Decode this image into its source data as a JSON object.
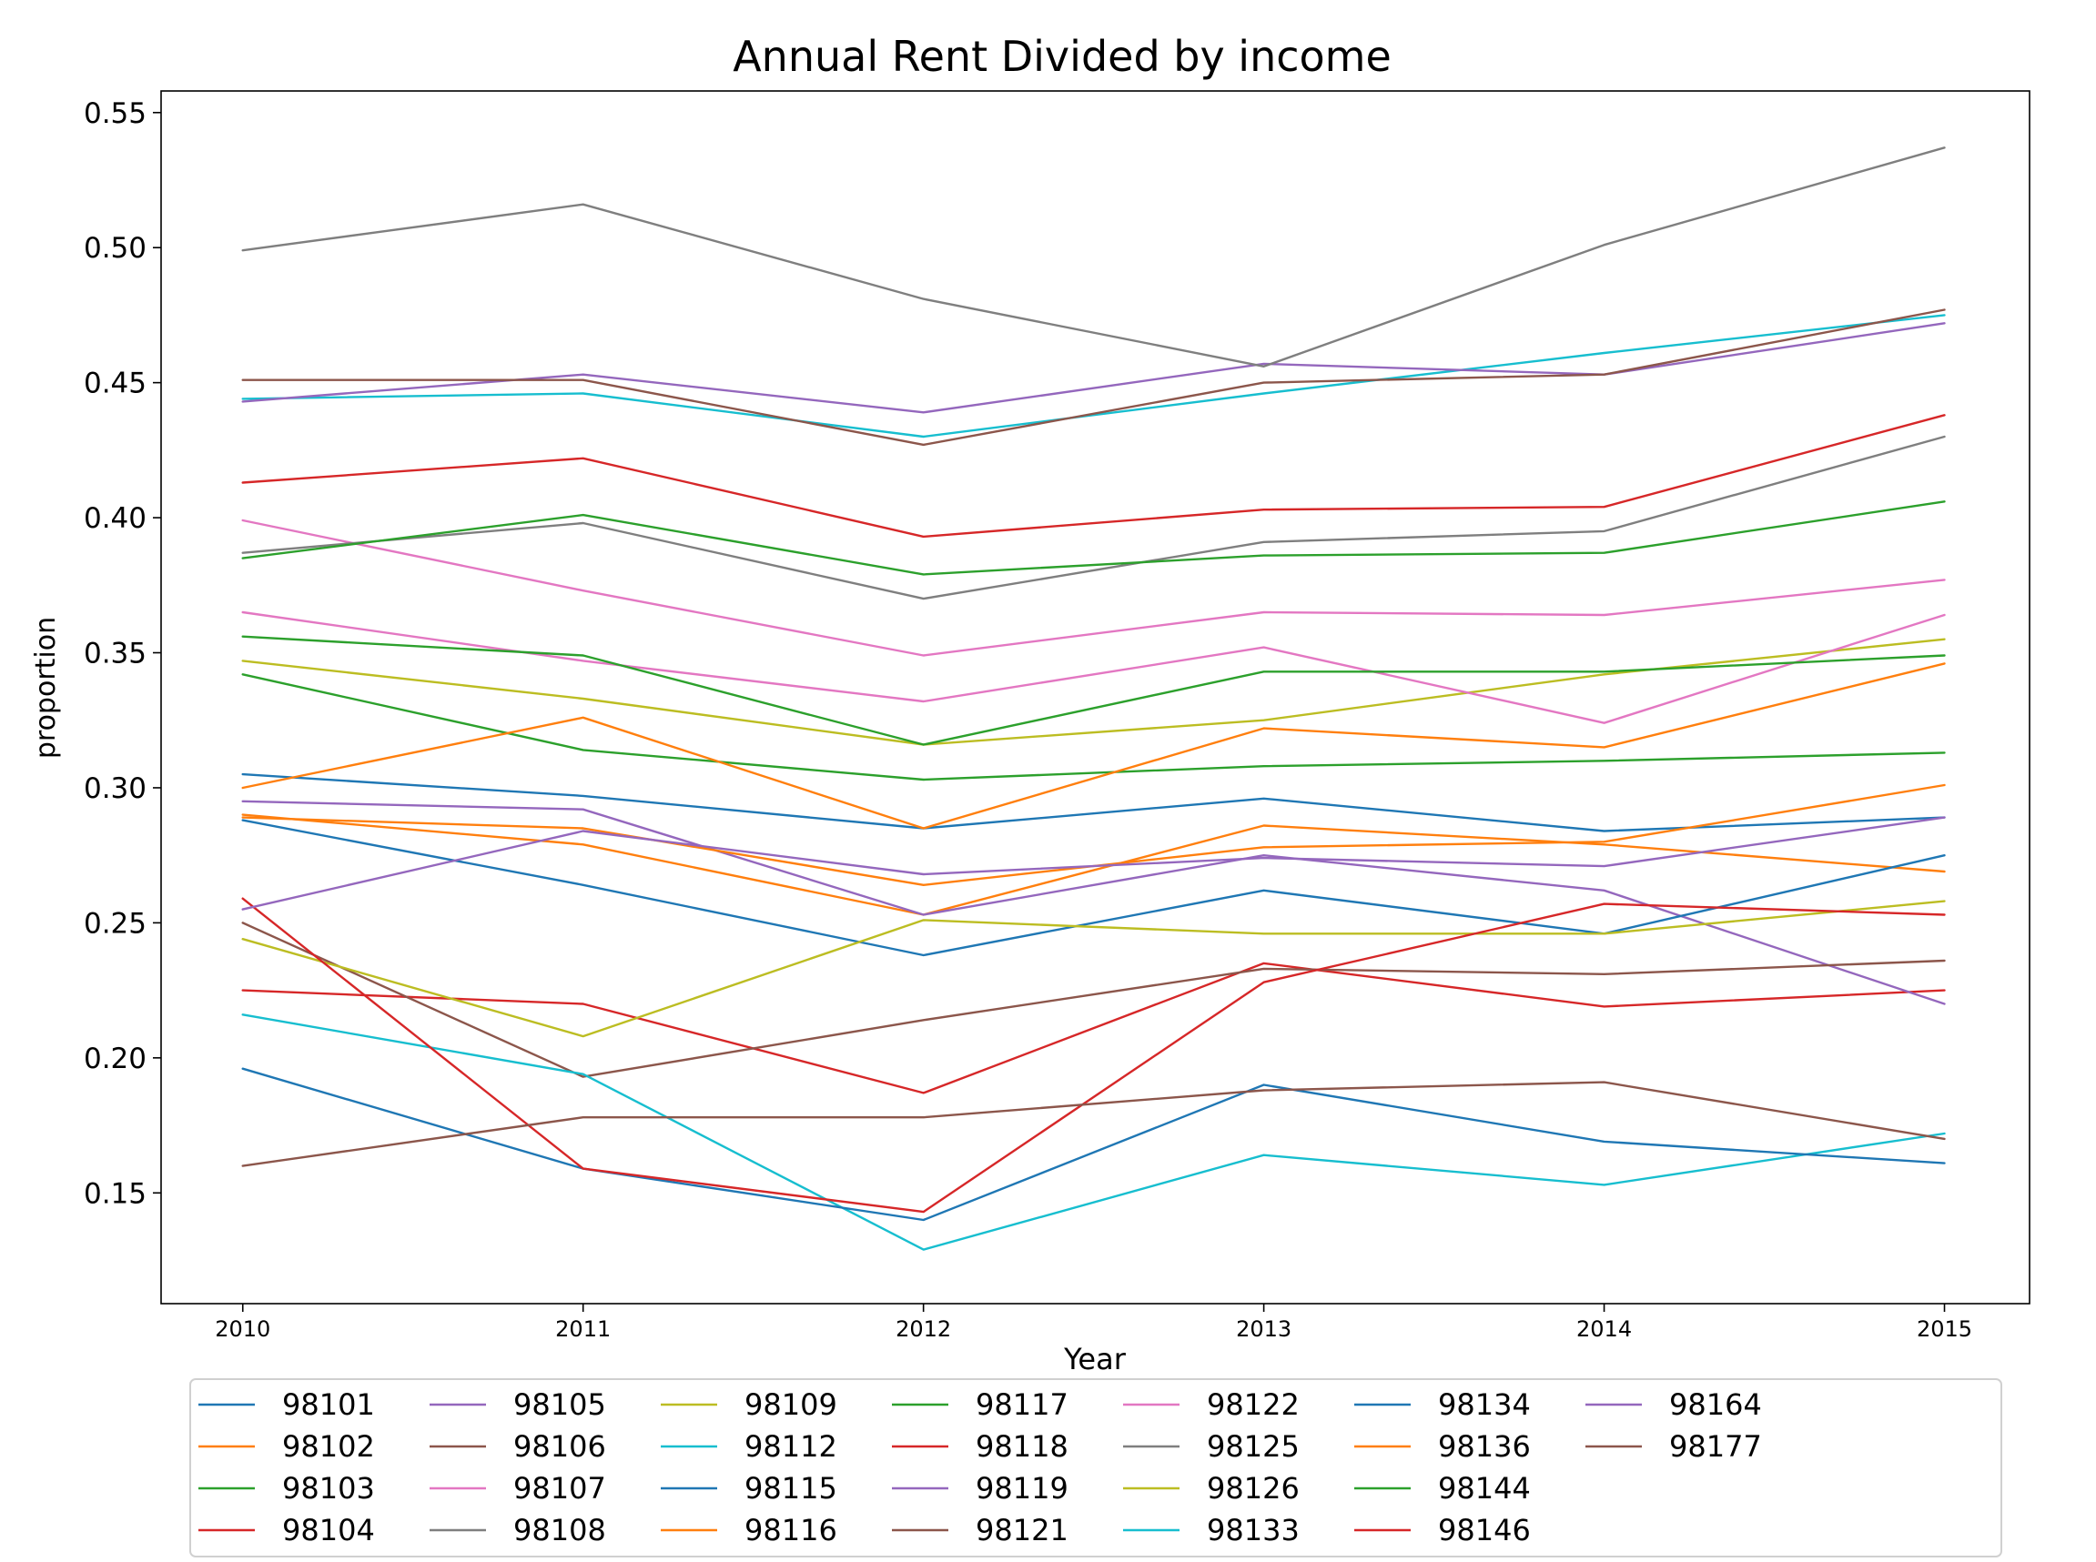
{
  "chart_data": {
    "type": "line",
    "title": "Annual Rent Divided by income",
    "xlabel": "Year",
    "ylabel": "proportion",
    "x": [
      2010,
      2011,
      2012,
      2013,
      2014,
      2015
    ],
    "x_tick_labels": [
      "2010",
      "2011",
      "2012",
      "2013",
      "2014",
      "2015"
    ],
    "xlim": [
      2009.76,
      2015.25
    ],
    "ylim": [
      0.109,
      0.558
    ],
    "y_ticks": [
      0.15,
      0.2,
      0.25,
      0.3,
      0.35,
      0.4,
      0.45,
      0.5,
      0.55
    ],
    "y_tick_labels": [
      "0.15",
      "0.20",
      "0.25",
      "0.30",
      "0.35",
      "0.40",
      "0.45",
      "0.50",
      "0.55"
    ],
    "grid": false,
    "legend_position": "bottom, below x-axis label",
    "legend_columns": 8,
    "series": [
      {
        "name": "98101",
        "color": "#1f77b4",
        "values": [
          0.305,
          0.297,
          0.285,
          0.296,
          0.284,
          0.289
        ]
      },
      {
        "name": "98102",
        "color": "#ff7f0e",
        "values": [
          0.29,
          0.279,
          0.253,
          0.286,
          0.279,
          0.269
        ]
      },
      {
        "name": "98103",
        "color": "#2ca02c",
        "values": [
          0.342,
          0.314,
          0.303,
          0.308,
          0.31,
          0.313
        ]
      },
      {
        "name": "98104",
        "color": "#d62728",
        "values": [
          0.225,
          0.22,
          0.187,
          0.235,
          0.219,
          0.225
        ]
      },
      {
        "name": "98105",
        "color": "#9467bd",
        "values": [
          0.295,
          0.292,
          0.253,
          0.275,
          0.262,
          0.22
        ]
      },
      {
        "name": "98106",
        "color": "#8c564b",
        "values": [
          0.25,
          0.193,
          0.214,
          0.233,
          0.231,
          0.236
        ]
      },
      {
        "name": "98107",
        "color": "#e377c2",
        "values": [
          0.399,
          0.373,
          0.349,
          0.365,
          0.364,
          0.377
        ]
      },
      {
        "name": "98108",
        "color": "#7f7f7f",
        "values": [
          0.387,
          0.398,
          0.37,
          0.391,
          0.395,
          0.43
        ]
      },
      {
        "name": "98109",
        "color": "#bcbd22",
        "values": [
          0.347,
          0.333,
          0.316,
          0.325,
          0.342,
          0.355
        ]
      },
      {
        "name": "98112",
        "color": "#17becf",
        "values": [
          0.444,
          0.446,
          0.43,
          0.446,
          0.461,
          0.475
        ]
      },
      {
        "name": "98115",
        "color": "#1f77b4",
        "values": [
          0.288,
          0.264,
          0.238,
          0.262,
          0.246,
          0.275
        ]
      },
      {
        "name": "98116",
        "color": "#ff7f0e",
        "values": [
          0.3,
          0.326,
          0.285,
          0.322,
          0.315,
          0.346
        ]
      },
      {
        "name": "98117",
        "color": "#2ca02c",
        "values": [
          0.385,
          0.401,
          0.379,
          0.386,
          0.387,
          0.406
        ]
      },
      {
        "name": "98118",
        "color": "#d62728",
        "values": [
          0.413,
          0.422,
          0.393,
          0.403,
          0.404,
          0.438
        ]
      },
      {
        "name": "98119",
        "color": "#9467bd",
        "values": [
          0.443,
          0.453,
          0.439,
          0.457,
          0.453,
          0.472
        ]
      },
      {
        "name": "98121",
        "color": "#8c564b",
        "values": [
          0.451,
          0.451,
          0.427,
          0.45,
          0.453,
          0.477
        ]
      },
      {
        "name": "98122",
        "color": "#e377c2",
        "values": [
          0.365,
          0.347,
          0.332,
          0.352,
          0.324,
          0.364
        ]
      },
      {
        "name": "98125",
        "color": "#7f7f7f",
        "values": [
          0.499,
          0.516,
          0.481,
          0.456,
          0.501,
          0.537
        ]
      },
      {
        "name": "98126",
        "color": "#bcbd22",
        "values": [
          0.244,
          0.208,
          0.251,
          0.246,
          0.246,
          0.258
        ]
      },
      {
        "name": "98133",
        "color": "#17becf",
        "values": [
          0.216,
          0.194,
          0.129,
          0.164,
          0.153,
          0.172
        ]
      },
      {
        "name": "98134",
        "color": "#1f77b4",
        "values": [
          0.196,
          0.159,
          0.14,
          0.19,
          0.169,
          0.161
        ]
      },
      {
        "name": "98136",
        "color": "#ff7f0e",
        "values": [
          0.289,
          0.285,
          0.264,
          0.278,
          0.28,
          0.301
        ]
      },
      {
        "name": "98144",
        "color": "#2ca02c",
        "values": [
          0.356,
          0.349,
          0.316,
          0.343,
          0.343,
          0.349
        ]
      },
      {
        "name": "98146",
        "color": "#d62728",
        "values": [
          0.259,
          0.159,
          0.143,
          0.228,
          0.257,
          0.253
        ]
      },
      {
        "name": "98164",
        "color": "#9467bd",
        "values": [
          0.255,
          0.284,
          0.268,
          0.274,
          0.271,
          0.289
        ]
      },
      {
        "name": "98177",
        "color": "#8c564b",
        "values": [
          0.16,
          0.178,
          0.178,
          0.188,
          0.191,
          0.17
        ]
      }
    ]
  }
}
